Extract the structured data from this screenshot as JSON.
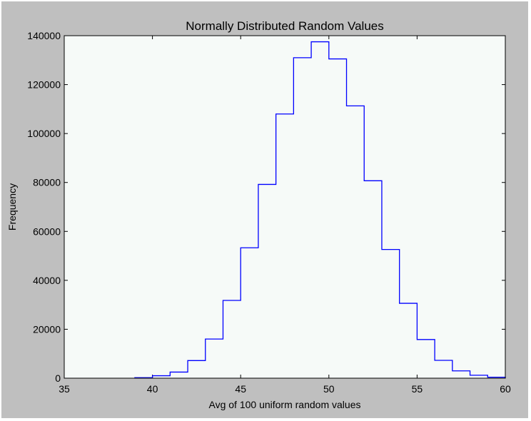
{
  "chart_data": {
    "type": "histogram",
    "title": "Normally Distributed Random Values",
    "xlabel": "Avg of 100 uniform random values",
    "ylabel": "Frequency",
    "xlim": [
      35,
      60
    ],
    "ylim": [
      0,
      140000
    ],
    "xticks": [
      "35",
      "40",
      "45",
      "50",
      "55",
      "60"
    ],
    "yticks": [
      "0",
      "20000",
      "40000",
      "60000",
      "80000",
      "100000",
      "120000",
      "140000"
    ],
    "histtype": "step",
    "bin_edges": [
      39,
      40,
      41,
      42,
      43,
      44,
      45,
      46,
      47,
      48,
      49,
      50,
      51,
      52,
      53,
      54,
      55,
      56,
      57,
      58,
      59,
      60
    ],
    "values": [
      200,
      1000,
      2500,
      7200,
      16000,
      31800,
      53300,
      79200,
      108000,
      131000,
      137500,
      130500,
      111300,
      80700,
      52600,
      30600,
      15800,
      7300,
      3000,
      1200,
      400
    ],
    "grid": false,
    "colors": {
      "line": "#0000ff",
      "plot_background": "#f6faf8",
      "figure_background": "#bfbfbf"
    }
  }
}
